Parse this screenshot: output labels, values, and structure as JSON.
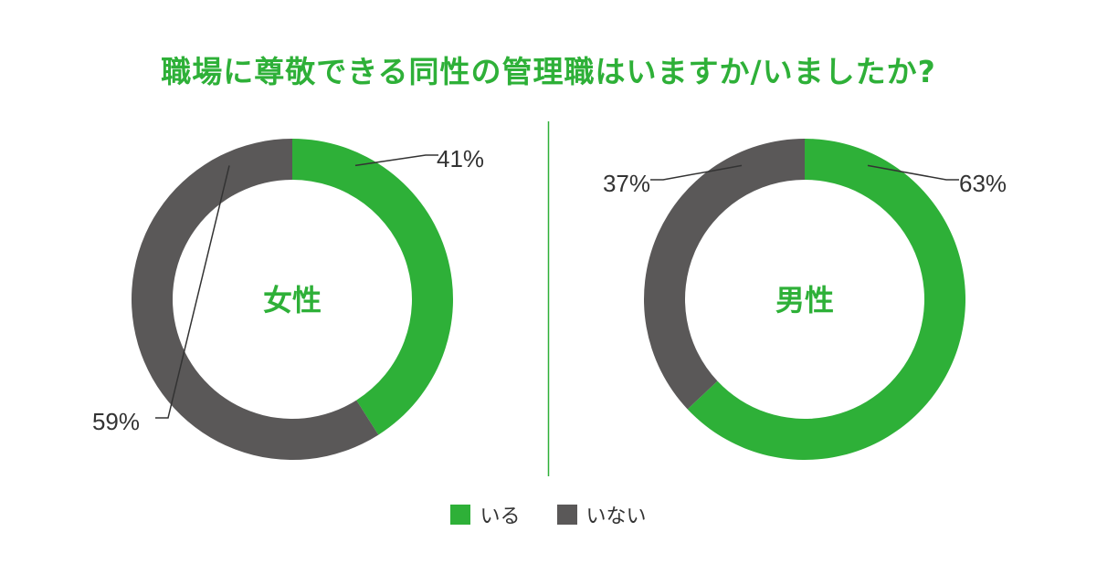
{
  "title": "職場に尊敬できる同性の管理職はいますか/いましたか?",
  "colors": {
    "accent": "#2eb038",
    "dark": "#5a5858",
    "divider": "#2eb038",
    "label_text": "#333333"
  },
  "legend": {
    "items": [
      {
        "label": "いる",
        "color": "#2eb038"
      },
      {
        "label": "いない",
        "color": "#5a5858"
      }
    ]
  },
  "chart_data": [
    {
      "type": "pie",
      "variant": "donut",
      "center_label": "女性",
      "categories": [
        "いる",
        "いない"
      ],
      "values": [
        41,
        59
      ],
      "labels": [
        "41%",
        "59%"
      ],
      "colors": [
        "#2eb038",
        "#5a5858"
      ]
    },
    {
      "type": "pie",
      "variant": "donut",
      "center_label": "男性",
      "categories": [
        "いる",
        "いない"
      ],
      "values": [
        63,
        37
      ],
      "labels": [
        "63%",
        "37%"
      ],
      "colors": [
        "#2eb038",
        "#5a5858"
      ]
    }
  ]
}
